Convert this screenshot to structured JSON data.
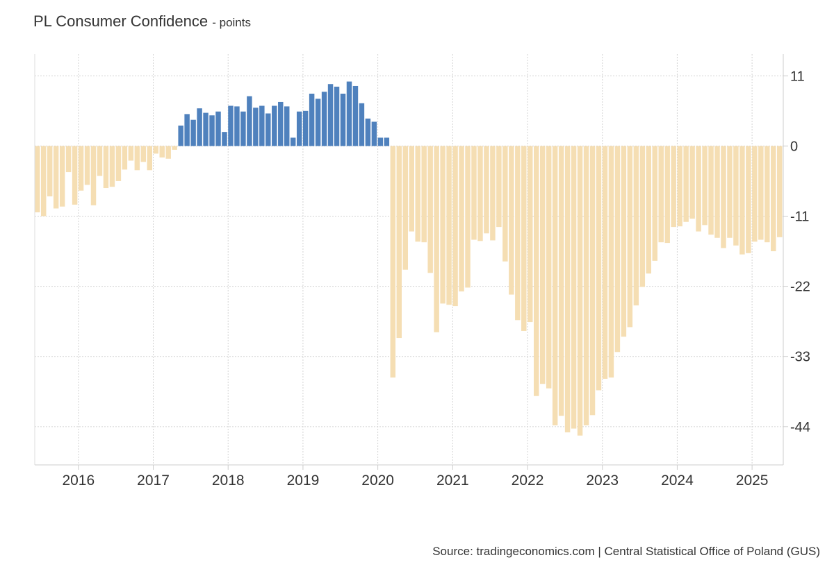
{
  "header": {
    "title": "PL Consumer Confidence",
    "subtitle": "- points"
  },
  "footer": {
    "source": "Source: tradingeconomics.com | Central Statistical Office of Poland (GUS)"
  },
  "chart_data": {
    "type": "bar",
    "title": "PL Consumer Confidence",
    "subtitle": "points",
    "xlabel": "",
    "ylabel": "",
    "ylim": [
      -50,
      14.4
    ],
    "y_ticks": [
      11,
      0,
      -11,
      -22,
      -33,
      -44
    ],
    "x_range": [
      "2015-06",
      "2025-06"
    ],
    "x_ticks": [
      "2016",
      "2017",
      "2018",
      "2019",
      "2020",
      "2021",
      "2022",
      "2023",
      "2024",
      "2025"
    ],
    "grid": true,
    "positive_color": "#4f81bd",
    "negative_color": "#f5deb3",
    "start_month": "2015-06",
    "months": [
      "2015-06",
      "2015-07",
      "2015-08",
      "2015-09",
      "2015-10",
      "2015-11",
      "2015-12",
      "2016-01",
      "2016-02",
      "2016-03",
      "2016-04",
      "2016-05",
      "2016-06",
      "2016-07",
      "2016-08",
      "2016-09",
      "2016-10",
      "2016-11",
      "2016-12",
      "2017-01",
      "2017-02",
      "2017-03",
      "2017-04",
      "2017-05",
      "2017-06",
      "2017-07",
      "2017-08",
      "2017-09",
      "2017-10",
      "2017-11",
      "2017-12",
      "2018-01",
      "2018-02",
      "2018-03",
      "2018-04",
      "2018-05",
      "2018-06",
      "2018-07",
      "2018-08",
      "2018-09",
      "2018-10",
      "2018-11",
      "2018-12",
      "2019-01",
      "2019-02",
      "2019-03",
      "2019-04",
      "2019-05",
      "2019-06",
      "2019-07",
      "2019-08",
      "2019-09",
      "2019-10",
      "2019-11",
      "2019-12",
      "2020-01",
      "2020-02",
      "2020-03",
      "2020-04",
      "2020-05",
      "2020-06",
      "2020-07",
      "2020-08",
      "2020-09",
      "2020-10",
      "2020-11",
      "2020-12",
      "2021-01",
      "2021-02",
      "2021-03",
      "2021-04",
      "2021-05",
      "2021-06",
      "2021-07",
      "2021-08",
      "2021-09",
      "2021-10",
      "2021-11",
      "2021-12",
      "2022-01",
      "2022-02",
      "2022-03",
      "2022-04",
      "2022-05",
      "2022-06",
      "2022-07",
      "2022-08",
      "2022-09",
      "2022-10",
      "2022-11",
      "2022-12",
      "2023-01",
      "2023-02",
      "2023-03",
      "2023-04",
      "2023-05",
      "2023-06",
      "2023-07",
      "2023-08",
      "2023-09",
      "2023-10",
      "2023-11",
      "2023-12",
      "2024-01",
      "2024-02",
      "2024-03",
      "2024-04",
      "2024-05",
      "2024-06",
      "2024-07",
      "2024-08",
      "2024-09",
      "2024-10",
      "2024-11",
      "2024-12",
      "2025-01",
      "2025-02",
      "2025-03",
      "2025-04",
      "2025-05"
    ],
    "values": [
      -10.4,
      -11.0,
      -7.9,
      -9.8,
      -9.5,
      -4.1,
      -9.2,
      -7.0,
      -6.1,
      -9.3,
      -4.7,
      -6.6,
      -6.4,
      -5.5,
      -3.7,
      -2.3,
      -3.8,
      -2.5,
      -3.8,
      -1.2,
      -1.8,
      -2.0,
      -0.6,
      3.2,
      5.0,
      4.1,
      5.9,
      5.2,
      4.8,
      5.4,
      2.2,
      6.3,
      6.2,
      5.4,
      7.8,
      6.0,
      6.3,
      5.1,
      6.3,
      6.9,
      6.2,
      1.3,
      5.4,
      5.5,
      8.2,
      7.4,
      8.5,
      9.7,
      9.3,
      8.2,
      10.1,
      9.4,
      6.7,
      4.3,
      3.8,
      1.3,
      1.3,
      -36.3,
      -30.1,
      -19.4,
      -13.4,
      -15.0,
      -15.1,
      -19.9,
      -29.2,
      -24.7,
      -24.9,
      -25.1,
      -22.8,
      -22.2,
      -14.7,
      -14.9,
      -13.7,
      -14.8,
      -12.7,
      -18.1,
      -23.3,
      -27.3,
      -29.0,
      -27.6,
      -39.2,
      -37.3,
      -38.0,
      -43.8,
      -42.3,
      -44.9,
      -44.3,
      -45.4,
      -43.8,
      -42.2,
      -38.3,
      -36.5,
      -36.3,
      -32.3,
      -29.9,
      -28.4,
      -25.0,
      -22.1,
      -20.0,
      -18.0,
      -15.1,
      -15.2,
      -12.7,
      -12.6,
      -11.9,
      -11.4,
      -13.4,
      -12.4,
      -13.9,
      -14.4,
      -16.0,
      -14.4,
      -15.6,
      -17.0,
      -16.8,
      -15.0,
      -14.7,
      -15.1,
      -16.5,
      -14.3
    ]
  }
}
